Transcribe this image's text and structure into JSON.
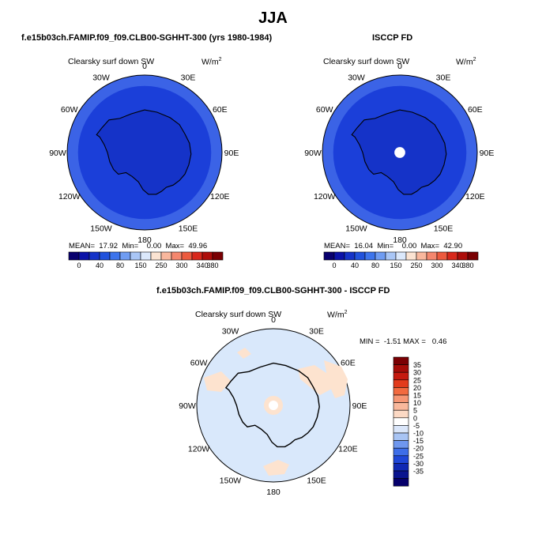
{
  "title": "JJA",
  "panels": [
    {
      "title": "f.e15b03ch.FAMIP.f09_f09.CLB00-SGHHT-300 (yrs 1980-1984)",
      "variable": "Clearsky surf down SW",
      "units": "W/m",
      "units_exp": "2",
      "mean_label": "MEAN=",
      "mean": "17.92",
      "min_label": "Min=",
      "min": "0.00",
      "max_label": "Max=",
      "max": "49.96",
      "fill_outer": "#3b63e6",
      "fill_inner": "#1b3fd9",
      "fill_center": "#1533c8"
    },
    {
      "title": "ISCCP FD",
      "variable": "Clearsky surf down SW",
      "units": "W/m",
      "units_exp": "2",
      "mean_label": "MEAN=",
      "mean": "16.04",
      "min_label": "Min=",
      "min": "0.00",
      "max_label": "Max=",
      "max": "42.90",
      "fill_outer": "#3b63e6",
      "fill_inner": "#1b3fd9",
      "fill_center": "#1533c8"
    }
  ],
  "diff_panel": {
    "title": "f.e15b03ch.FAMIP.f09_f09.CLB00-SGHHT-300 - ISCCP FD",
    "variable": "Clearsky surf down SW",
    "units": "W/m",
    "units_exp": "2",
    "minmax_text": "MIN =  -1.51 MAX =   0.46",
    "fill_main": "#d9e8fb",
    "fill_pos": "#fde3cf"
  },
  "lon_labels": [
    "0",
    "30E",
    "60E",
    "90E",
    "120E",
    "150E",
    "180",
    "150W",
    "120W",
    "90W",
    "60W",
    "30W"
  ],
  "h_colorbar": {
    "colors": [
      "#08006e",
      "#0b12a8",
      "#1533c8",
      "#2152dc",
      "#3d74ec",
      "#6f9cf2",
      "#a9c6f6",
      "#dbe8fb",
      "#fbe3d2",
      "#f9b79d",
      "#f4876e",
      "#ec5a3e",
      "#d8281b",
      "#ad0d0a",
      "#7a0003"
    ],
    "ticks": [
      "0",
      "40",
      "80",
      "150",
      "250",
      "300",
      "340",
      "380"
    ]
  },
  "v_colorbar": {
    "colors": [
      "#7a0003",
      "#a50c08",
      "#c51a0f",
      "#e23b1c",
      "#f26a3f",
      "#f69674",
      "#f9b89c",
      "#fcd9c4",
      "#ffffff",
      "#dae6fa",
      "#a8c4f4",
      "#6f97ee",
      "#3e6ee8",
      "#1f47d8",
      "#1029b4",
      "#0a148f",
      "#06006b"
    ],
    "ticks": [
      "35",
      "30",
      "25",
      "20",
      "15",
      "10",
      "5",
      "0",
      "-5",
      "-10",
      "-15",
      "-20",
      "-25",
      "-30",
      "-35"
    ]
  }
}
